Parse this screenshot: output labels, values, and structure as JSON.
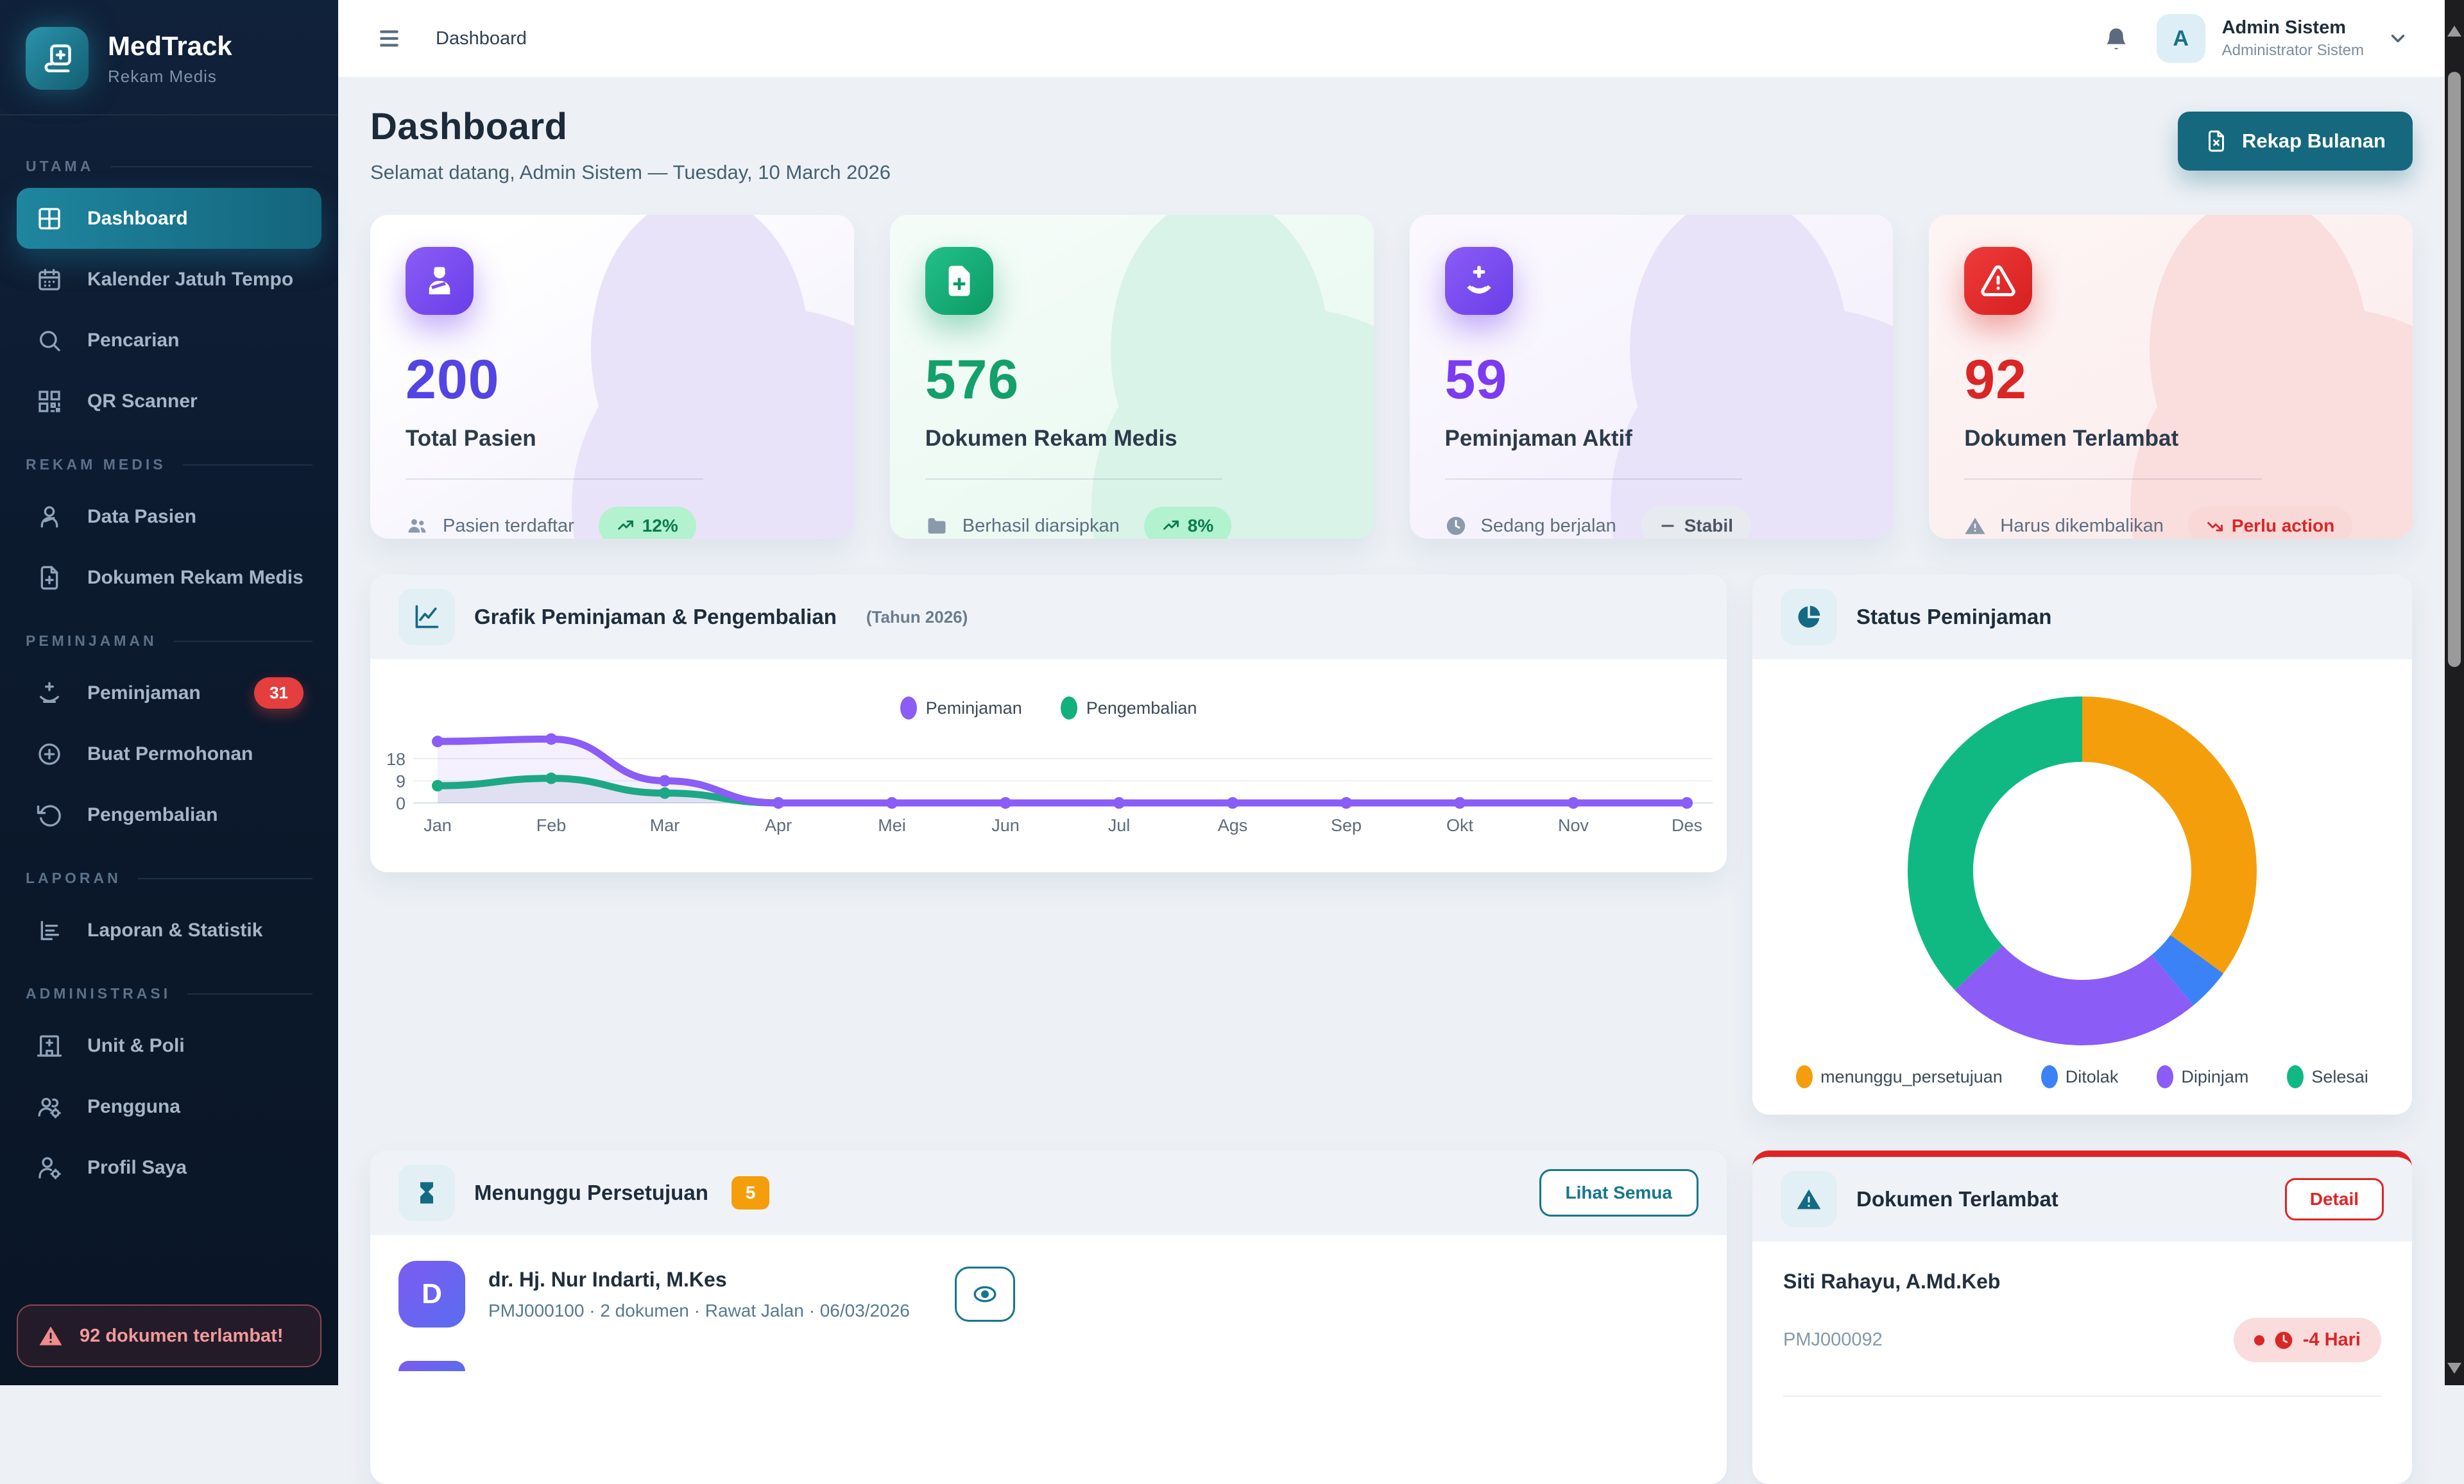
{
  "app": {
    "brand": "MedTrack",
    "brand_subtitle": "Rekam Medis"
  },
  "topbar": {
    "breadcrumb": "Dashboard",
    "user_initial": "A",
    "user_name": "Admin Sistem",
    "user_role": "Administrator Sistem"
  },
  "sidebar": {
    "sections": [
      {
        "label": "UTAMA",
        "items": [
          {
            "label": "Dashboard",
            "icon": "grid-icon",
            "active": true
          },
          {
            "label": "Kalender Jatuh Tempo",
            "icon": "calendar-icon"
          },
          {
            "label": "Pencarian",
            "icon": "search-icon"
          },
          {
            "label": "QR Scanner",
            "icon": "qr-code-icon"
          }
        ]
      },
      {
        "label": "REKAM MEDIS",
        "items": [
          {
            "label": "Data Pasien",
            "icon": "patient-icon"
          },
          {
            "label": "Dokumen Rekam Medis",
            "icon": "file-medical-icon"
          }
        ]
      },
      {
        "label": "PEMINJAMAN",
        "items": [
          {
            "label": "Peminjaman",
            "icon": "hand-holding-plus-icon",
            "badge": "31"
          },
          {
            "label": "Buat Permohonan",
            "icon": "plus-circle-icon"
          },
          {
            "label": "Pengembalian",
            "icon": "rotate-ccw-icon"
          }
        ]
      },
      {
        "label": "LAPORAN",
        "items": [
          {
            "label": "Laporan & Statistik",
            "icon": "report-icon"
          }
        ]
      },
      {
        "label": "ADMINISTRASI",
        "items": [
          {
            "label": "Unit & Poli",
            "icon": "hospital-icon"
          },
          {
            "label": "Pengguna",
            "icon": "users-gear-icon"
          },
          {
            "label": "Profil Saya",
            "icon": "user-gear-icon"
          }
        ]
      }
    ],
    "alert": "92 dokumen terlambat!"
  },
  "header": {
    "title": "Dashboard",
    "welcome": "Selamat datang, Admin Sistem — Tuesday, 10 March 2026",
    "action": "Rekap Bulanan"
  },
  "stats": [
    {
      "value": "200",
      "label": "Total Pasien",
      "footer": "Pasien terdaftar",
      "badge": "12%",
      "icon": "patient-icon",
      "footer_icon": "users-icon",
      "trend": "up",
      "color": "#5344e4"
    },
    {
      "value": "576",
      "label": "Dokumen Rekam Medis",
      "footer": "Berhasil diarsipkan",
      "badge": "8%",
      "icon": "file-plus-icon",
      "footer_icon": "folder-icon",
      "trend": "up",
      "color": "#13a06b"
    },
    {
      "value": "59",
      "label": "Peminjaman Aktif",
      "footer": "Sedang berjalan",
      "badge": "Stabil",
      "icon": "hand-holding-plus-icon",
      "footer_icon": "clock-icon",
      "trend": "flat",
      "color": "#7c3bf0"
    },
    {
      "value": "92",
      "label": "Dokumen Terlambat",
      "footer": "Harus dikembalikan",
      "badge": "Perlu action",
      "icon": "warning-icon",
      "footer_icon": "warning-icon",
      "trend": "down",
      "color": "#d92626"
    }
  ],
  "chart_data": [
    {
      "type": "line",
      "title": "Grafik Peminjaman & Pengembalian",
      "subtitle": "(Tahun 2026)",
      "categories": [
        "Jan",
        "Feb",
        "Mar",
        "Apr",
        "Mei",
        "Jun",
        "Jul",
        "Ags",
        "Sep",
        "Okt",
        "Nov",
        "Des"
      ],
      "series": [
        {
          "name": "Peminjaman",
          "color": "#8b5cf6",
          "values": [
            25,
            26,
            9,
            0,
            0,
            0,
            0,
            0,
            0,
            0,
            0,
            0
          ]
        },
        {
          "name": "Pengembalian",
          "color": "#12b07b",
          "values": [
            7,
            10,
            4,
            0,
            0,
            0,
            0,
            0,
            0,
            0,
            0,
            0
          ]
        }
      ],
      "yticks": [
        0,
        9,
        18
      ],
      "ylim": [
        0,
        27
      ],
      "grid": true,
      "legend_position": "top"
    },
    {
      "type": "donut",
      "title": "Status Peminjaman",
      "slices": [
        {
          "label": "menunggu_persetujuan",
          "color": "#f59e0b",
          "percent": 35
        },
        {
          "label": "Ditolak",
          "color": "#3b82f6",
          "percent": 4
        },
        {
          "label": "Dipinjam",
          "color": "#8b5cf6",
          "percent": 24
        },
        {
          "label": "Selesai",
          "color": "#10b981",
          "percent": 37
        }
      ],
      "legend_position": "bottom"
    }
  ],
  "approval": {
    "title": "Menunggu Persetujuan",
    "count": "5",
    "action": "Lihat Semua",
    "items": [
      {
        "initial": "D",
        "name": "dr. Hj. Nur Indarti, M.Kes",
        "meta": "PMJ000100 · 2 dokumen · Rawat Jalan · 06/03/2026"
      }
    ]
  },
  "overdue": {
    "title": "Dokumen Terlambat",
    "action": "Detail",
    "items": [
      {
        "name": "Siti Rahayu, A.Md.Keb",
        "id": "PMJ000092",
        "badge": "-4 Hari"
      }
    ]
  },
  "colors": {
    "accent_teal": "#15687d",
    "purple": "#7c4df2",
    "green": "#10a56b",
    "red": "#dc2626",
    "orange": "#f59e0b",
    "blue": "#3b82f6",
    "sidebar_bg": "#0c1a2e"
  }
}
